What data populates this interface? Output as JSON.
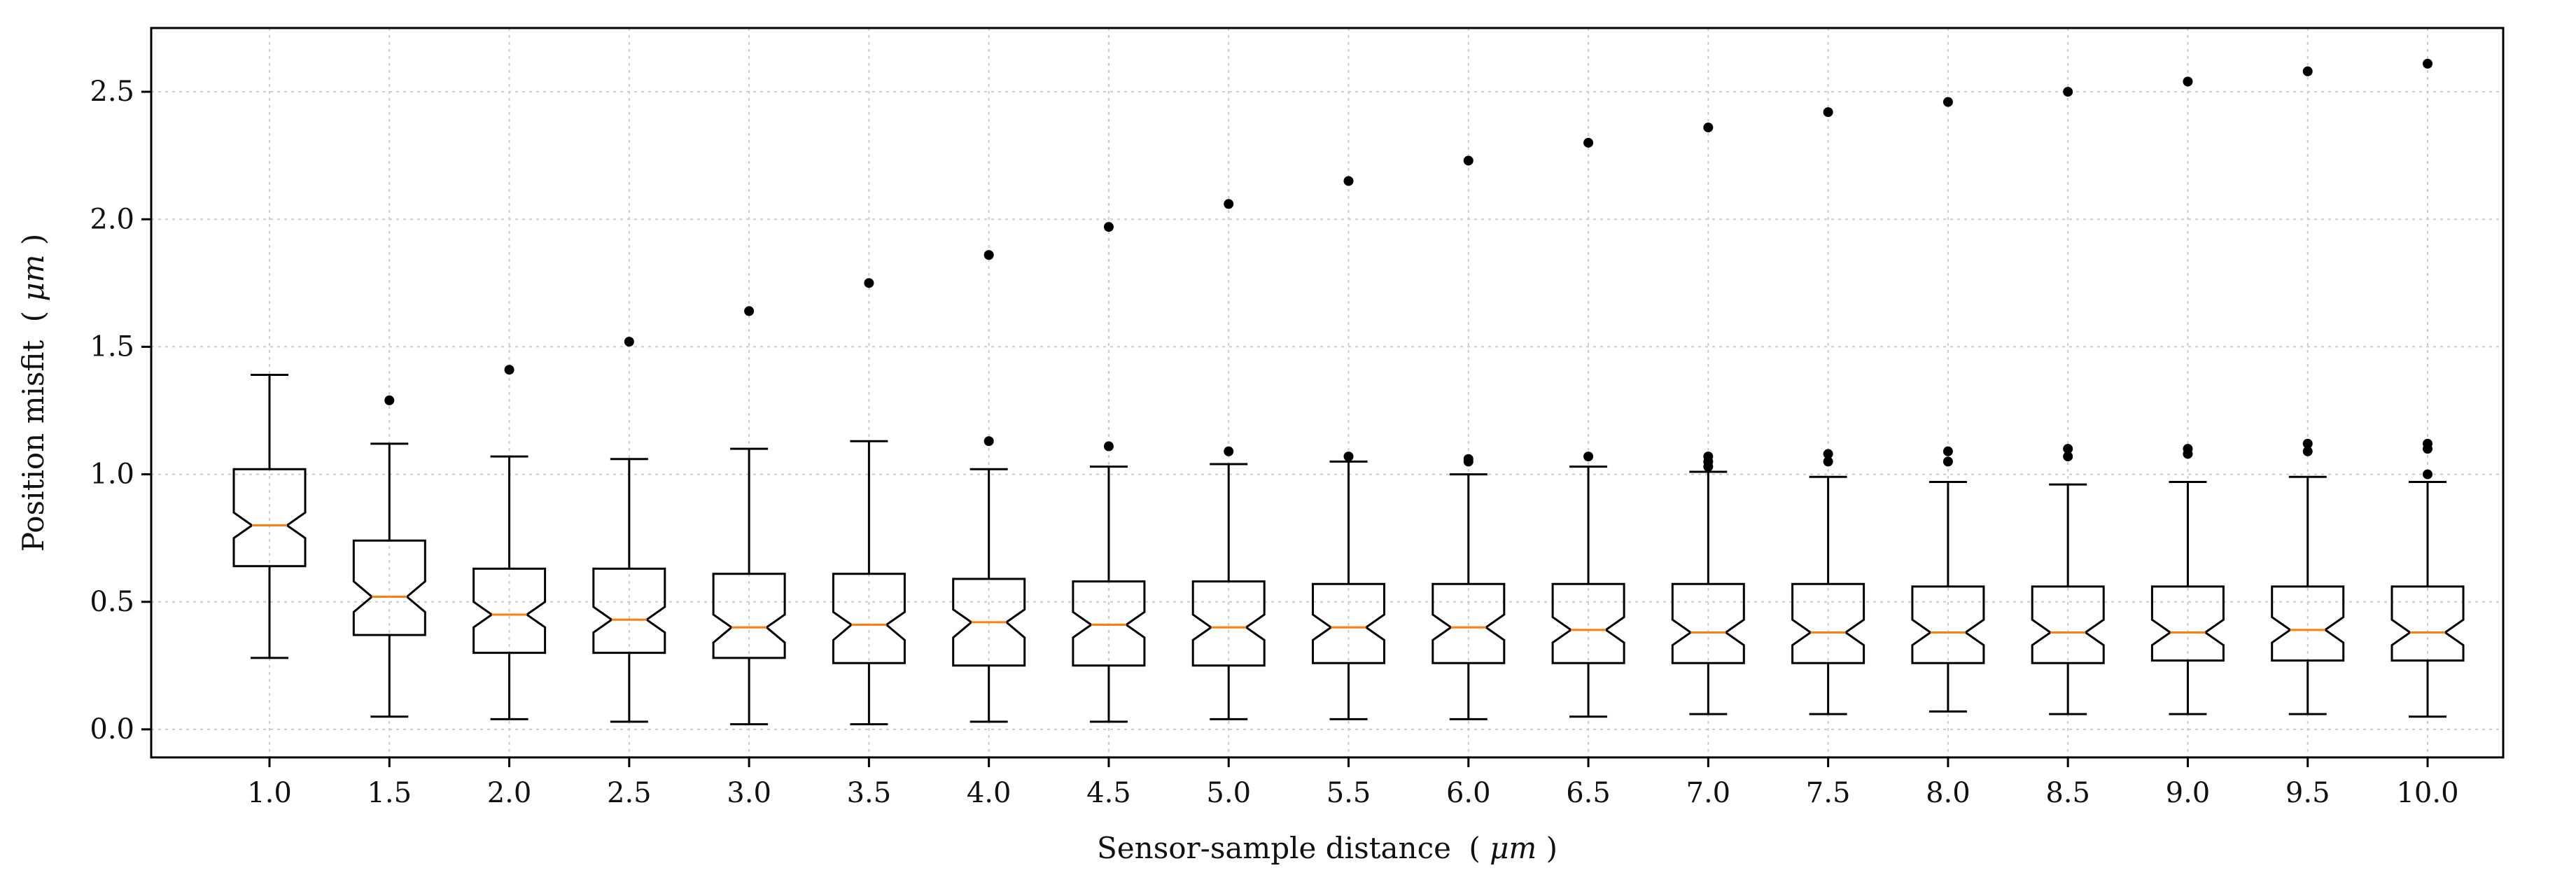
{
  "chart_data": {
    "type": "box",
    "notched": true,
    "title": "",
    "xlabel": "Sensor-sample distance",
    "xlabel_unit_open": "(",
    "xlabel_unit": "μm",
    "xlabel_unit_close": ")",
    "ylabel": "Position misfit",
    "ylabel_unit_open": "(",
    "ylabel_unit": "μm",
    "ylabel_unit_close": ")",
    "ylim": [
      -0.11,
      2.75
    ],
    "yticks": [
      "0.0",
      "0.5",
      "1.0",
      "1.5",
      "2.0",
      "2.5"
    ],
    "grid": true,
    "colors": {
      "box_edge": "#000000",
      "median": "#ff7f0e",
      "grid": "#cccccc",
      "outlier": "#000000"
    },
    "categories": [
      "1.0",
      "1.5",
      "2.0",
      "2.5",
      "3.0",
      "3.5",
      "4.0",
      "4.5",
      "5.0",
      "5.5",
      "6.0",
      "6.5",
      "7.0",
      "7.5",
      "8.0",
      "8.5",
      "9.0",
      "9.5",
      "10.0"
    ],
    "boxes": [
      {
        "label": "1.0",
        "whisker_low": 0.28,
        "q1": 0.64,
        "median": 0.8,
        "q3": 1.02,
        "whisker_high": 1.39,
        "notch_low": 0.75,
        "notch_high": 0.85,
        "outliers": []
      },
      {
        "label": "1.5",
        "whisker_low": 0.05,
        "q1": 0.37,
        "median": 0.52,
        "q3": 0.74,
        "whisker_high": 1.12,
        "notch_low": 0.46,
        "notch_high": 0.58,
        "outliers": [
          1.29
        ]
      },
      {
        "label": "2.0",
        "whisker_low": 0.04,
        "q1": 0.3,
        "median": 0.45,
        "q3": 0.63,
        "whisker_high": 1.07,
        "notch_low": 0.4,
        "notch_high": 0.5,
        "outliers": [
          1.41
        ]
      },
      {
        "label": "2.5",
        "whisker_low": 0.03,
        "q1": 0.3,
        "median": 0.43,
        "q3": 0.63,
        "whisker_high": 1.06,
        "notch_low": 0.38,
        "notch_high": 0.48,
        "outliers": [
          1.52
        ]
      },
      {
        "label": "3.0",
        "whisker_low": 0.02,
        "q1": 0.28,
        "median": 0.4,
        "q3": 0.61,
        "whisker_high": 1.1,
        "notch_low": 0.34,
        "notch_high": 0.45,
        "outliers": [
          1.64
        ]
      },
      {
        "label": "3.5",
        "whisker_low": 0.02,
        "q1": 0.26,
        "median": 0.41,
        "q3": 0.61,
        "whisker_high": 1.13,
        "notch_low": 0.35,
        "notch_high": 0.46,
        "outliers": [
          1.75
        ]
      },
      {
        "label": "4.0",
        "whisker_low": 0.03,
        "q1": 0.25,
        "median": 0.42,
        "q3": 0.59,
        "whisker_high": 1.02,
        "notch_low": 0.36,
        "notch_high": 0.47,
        "outliers": [
          1.13,
          1.86
        ]
      },
      {
        "label": "4.5",
        "whisker_low": 0.03,
        "q1": 0.25,
        "median": 0.41,
        "q3": 0.58,
        "whisker_high": 1.03,
        "notch_low": 0.36,
        "notch_high": 0.46,
        "outliers": [
          1.11,
          1.97
        ]
      },
      {
        "label": "5.0",
        "whisker_low": 0.04,
        "q1": 0.25,
        "median": 0.4,
        "q3": 0.58,
        "whisker_high": 1.04,
        "notch_low": 0.35,
        "notch_high": 0.45,
        "outliers": [
          1.09,
          2.06
        ]
      },
      {
        "label": "5.5",
        "whisker_low": 0.04,
        "q1": 0.26,
        "median": 0.4,
        "q3": 0.57,
        "whisker_high": 1.05,
        "notch_low": 0.35,
        "notch_high": 0.45,
        "outliers": [
          1.07,
          2.15
        ]
      },
      {
        "label": "6.0",
        "whisker_low": 0.04,
        "q1": 0.26,
        "median": 0.4,
        "q3": 0.57,
        "whisker_high": 1.0,
        "notch_low": 0.35,
        "notch_high": 0.45,
        "outliers": [
          1.05,
          1.06,
          2.23
        ]
      },
      {
        "label": "6.5",
        "whisker_low": 0.05,
        "q1": 0.26,
        "median": 0.39,
        "q3": 0.57,
        "whisker_high": 1.03,
        "notch_low": 0.34,
        "notch_high": 0.44,
        "outliers": [
          1.07,
          2.3
        ]
      },
      {
        "label": "7.0",
        "whisker_low": 0.06,
        "q1": 0.26,
        "median": 0.38,
        "q3": 0.57,
        "whisker_high": 1.01,
        "notch_low": 0.33,
        "notch_high": 0.43,
        "outliers": [
          1.03,
          1.05,
          1.07,
          2.36
        ]
      },
      {
        "label": "7.5",
        "whisker_low": 0.06,
        "q1": 0.26,
        "median": 0.38,
        "q3": 0.57,
        "whisker_high": 0.99,
        "notch_low": 0.33,
        "notch_high": 0.43,
        "outliers": [
          1.05,
          1.08,
          2.42
        ]
      },
      {
        "label": "8.0",
        "whisker_low": 0.07,
        "q1": 0.26,
        "median": 0.38,
        "q3": 0.56,
        "whisker_high": 0.97,
        "notch_low": 0.33,
        "notch_high": 0.43,
        "outliers": [
          1.05,
          1.09,
          2.46
        ]
      },
      {
        "label": "8.5",
        "whisker_low": 0.06,
        "q1": 0.26,
        "median": 0.38,
        "q3": 0.56,
        "whisker_high": 0.96,
        "notch_low": 0.33,
        "notch_high": 0.43,
        "outliers": [
          1.07,
          1.1,
          2.5
        ]
      },
      {
        "label": "9.0",
        "whisker_low": 0.06,
        "q1": 0.27,
        "median": 0.38,
        "q3": 0.56,
        "whisker_high": 0.97,
        "notch_low": 0.33,
        "notch_high": 0.43,
        "outliers": [
          1.08,
          1.1,
          2.54
        ]
      },
      {
        "label": "9.5",
        "whisker_low": 0.06,
        "q1": 0.27,
        "median": 0.39,
        "q3": 0.56,
        "whisker_high": 0.99,
        "notch_low": 0.34,
        "notch_high": 0.44,
        "outliers": [
          1.09,
          1.12,
          2.58
        ]
      },
      {
        "label": "10.0",
        "whisker_low": 0.05,
        "q1": 0.27,
        "median": 0.38,
        "q3": 0.56,
        "whisker_high": 0.97,
        "notch_low": 0.33,
        "notch_high": 0.43,
        "outliers": [
          1.0,
          1.1,
          1.12,
          2.61
        ]
      }
    ]
  }
}
